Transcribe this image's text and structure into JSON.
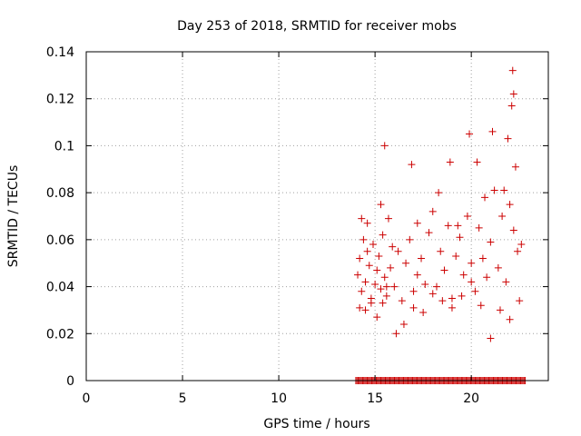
{
  "chart_data": {
    "type": "scatter",
    "title": "Day 253 of 2018, SRMTID for receiver mobs",
    "xlabel": "GPS time / hours",
    "ylabel": "SRMTID / TECUs",
    "xlim": [
      0,
      24
    ],
    "ylim": [
      0,
      0.14
    ],
    "grid": true,
    "x_ticks": [
      0,
      5,
      10,
      15,
      20
    ],
    "x_tick_labels": [
      "0",
      "5",
      "10",
      "15",
      "20"
    ],
    "y_ticks": [
      0,
      0.02,
      0.04,
      0.06,
      0.08,
      0.1,
      0.12,
      0.14
    ],
    "y_tick_labels": [
      "0",
      "0.02",
      "0.04",
      "0.06",
      "0.08",
      "0.1",
      "0.12",
      "0.14"
    ],
    "marker": "+",
    "series": [
      {
        "name": "SRMTID",
        "color": "#cc0000",
        "x_range": [
          14.0,
          22.8
        ],
        "zero_value_count": 150,
        "x": [
          14.1,
          14.2,
          14.3,
          14.4,
          14.5,
          14.6,
          14.7,
          14.8,
          14.9,
          15.0,
          15.1,
          15.2,
          15.3,
          15.4,
          15.5,
          15.6,
          15.7,
          15.8,
          15.9,
          16.0,
          16.2,
          16.4,
          16.6,
          16.8,
          17.0,
          17.2,
          17.4,
          17.6,
          17.8,
          18.0,
          18.2,
          18.4,
          18.6,
          18.8,
          19.0,
          19.2,
          19.4,
          19.6,
          19.8,
          20.0,
          20.2,
          20.4,
          20.6,
          20.8,
          21.0,
          21.2,
          21.4,
          21.6,
          21.8,
          22.0,
          22.2,
          22.4,
          22.6,
          14.2,
          14.5,
          14.8,
          15.1,
          15.4,
          15.6,
          16.1,
          16.5,
          17.0,
          17.5,
          18.0,
          18.5,
          19.0,
          19.5,
          20.0,
          20.5,
          21.0,
          21.5,
          22.0,
          22.5,
          14.6,
          15.3,
          16.9,
          18.9,
          19.9,
          20.3,
          21.1,
          21.9,
          22.1,
          22.15,
          22.2,
          14.3,
          15.5,
          17.2,
          18.3,
          19.3,
          20.7,
          21.7,
          22.3
        ],
        "y": [
          0.045,
          0.052,
          0.038,
          0.06,
          0.042,
          0.055,
          0.049,
          0.035,
          0.058,
          0.041,
          0.047,
          0.053,
          0.039,
          0.062,
          0.044,
          0.036,
          0.069,
          0.048,
          0.057,
          0.04,
          0.055,
          0.034,
          0.05,
          0.06,
          0.038,
          0.045,
          0.052,
          0.041,
          0.063,
          0.072,
          0.04,
          0.055,
          0.047,
          0.066,
          0.035,
          0.053,
          0.061,
          0.045,
          0.07,
          0.05,
          0.038,
          0.065,
          0.052,
          0.044,
          0.059,
          0.081,
          0.048,
          0.07,
          0.042,
          0.075,
          0.064,
          0.055,
          0.058,
          0.031,
          0.03,
          0.033,
          0.027,
          0.033,
          0.04,
          0.02,
          0.024,
          0.031,
          0.029,
          0.037,
          0.034,
          0.031,
          0.036,
          0.042,
          0.032,
          0.018,
          0.03,
          0.026,
          0.034,
          0.067,
          0.075,
          0.092,
          0.093,
          0.105,
          0.093,
          0.106,
          0.103,
          0.117,
          0.132,
          0.122,
          0.069,
          0.1,
          0.067,
          0.08,
          0.066,
          0.078,
          0.081,
          0.091
        ]
      }
    ]
  }
}
